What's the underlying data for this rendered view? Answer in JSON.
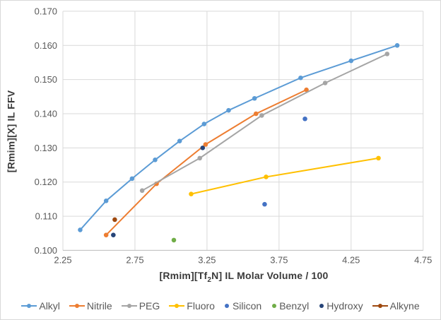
{
  "chart_data": {
    "type": "line",
    "title": "",
    "ylabel": "[Rmim][X] IL FFV",
    "xlabel_parts": {
      "pre": "[Rmim][Tf",
      "sub": "2",
      "post": "N] IL Molar Volume / 100"
    },
    "xlim": [
      2.25,
      4.75
    ],
    "ylim": [
      0.1,
      0.17
    ],
    "x_ticks": [
      "2.25",
      "2.75",
      "3.25",
      "3.75",
      "4.25",
      "4.75"
    ],
    "y_ticks": [
      "0.100",
      "0.110",
      "0.120",
      "0.130",
      "0.140",
      "0.150",
      "0.160",
      "0.170"
    ],
    "grid": true,
    "grid_color": "#D9D9D9",
    "axis_line_color": "#BFBFBF",
    "tick_color": "#595959",
    "legend_position": "bottom",
    "series": [
      {
        "name": "Alkyl",
        "type": "line",
        "color": "#5B9BD5",
        "points": [
          [
            2.37,
            0.106
          ],
          [
            2.55,
            0.1145
          ],
          [
            2.73,
            0.121
          ],
          [
            2.89,
            0.1265
          ],
          [
            3.06,
            0.132
          ],
          [
            3.23,
            0.137
          ],
          [
            3.4,
            0.141
          ],
          [
            3.58,
            0.1445
          ],
          [
            3.9,
            0.1505
          ],
          [
            4.25,
            0.1555
          ],
          [
            4.57,
            0.16
          ]
        ]
      },
      {
        "name": "Nitrile",
        "type": "line",
        "color": "#ED7D31",
        "points": [
          [
            2.55,
            0.1045
          ],
          [
            2.9,
            0.1195
          ],
          [
            3.24,
            0.131
          ],
          [
            3.59,
            0.14
          ],
          [
            3.94,
            0.147
          ]
        ]
      },
      {
        "name": "PEG",
        "type": "line",
        "color": "#A5A5A5",
        "points": [
          [
            2.8,
            0.1175
          ],
          [
            3.2,
            0.127
          ],
          [
            3.63,
            0.1395
          ],
          [
            4.07,
            0.149
          ],
          [
            4.5,
            0.1575
          ]
        ]
      },
      {
        "name": "Fluoro",
        "type": "line",
        "color": "#FFC000",
        "points": [
          [
            3.14,
            0.1165
          ],
          [
            3.66,
            0.1215
          ],
          [
            4.44,
            0.127
          ]
        ]
      },
      {
        "name": "Silicon",
        "type": "scatter",
        "color": "#4472C4",
        "points": [
          [
            3.65,
            0.1135
          ],
          [
            3.93,
            0.1385
          ]
        ]
      },
      {
        "name": "Benzyl",
        "type": "scatter",
        "color": "#70AD47",
        "points": [
          [
            3.02,
            0.103
          ]
        ]
      },
      {
        "name": "Hydroxy",
        "type": "scatter",
        "color": "#264478",
        "points": [
          [
            2.6,
            0.1045
          ],
          [
            3.22,
            0.13
          ]
        ]
      },
      {
        "name": "Alkyne",
        "type": "line",
        "color": "#9E480E",
        "points": [
          [
            2.61,
            0.109
          ]
        ]
      }
    ]
  }
}
